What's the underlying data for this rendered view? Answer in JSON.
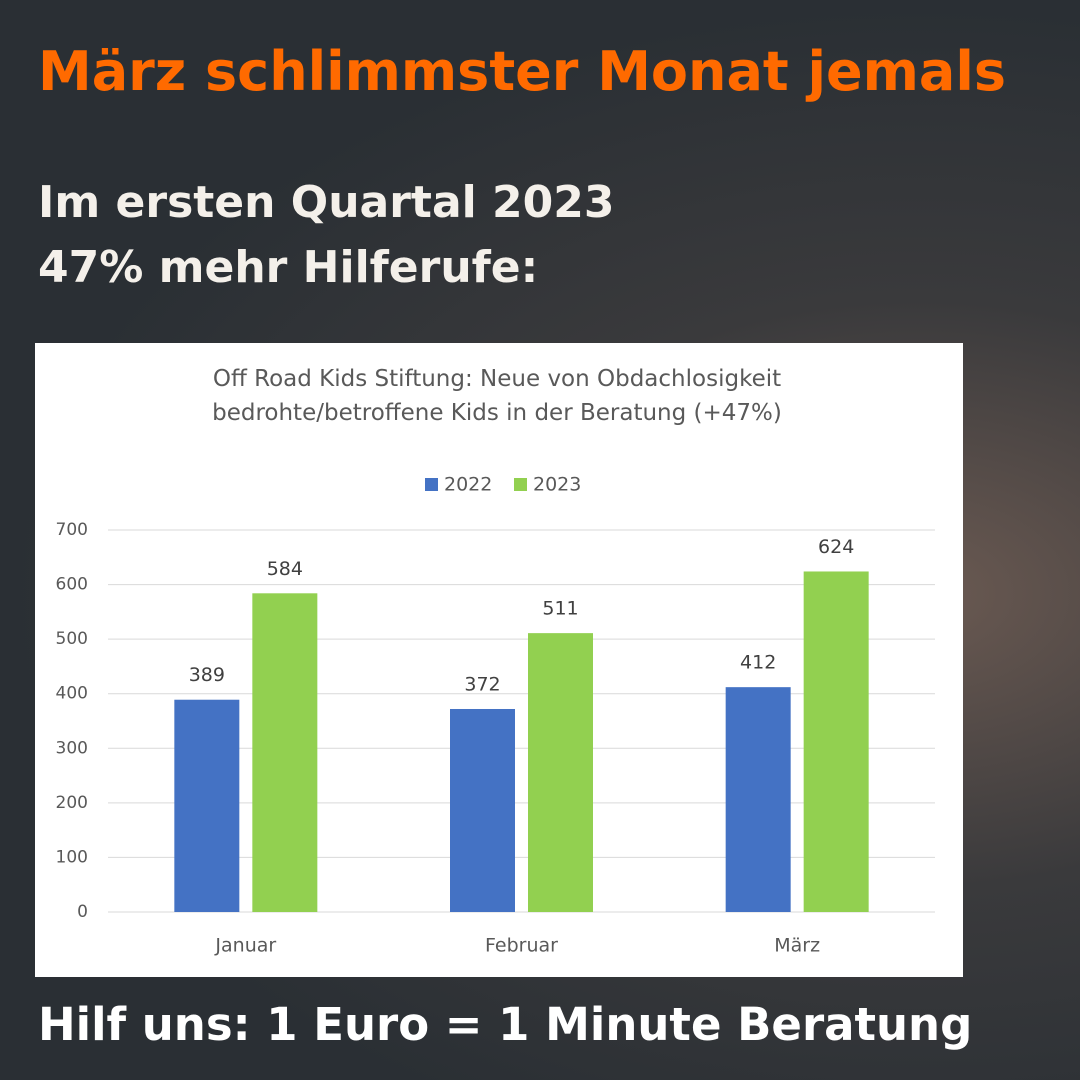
{
  "headline": "März schlimmster Monat jemals",
  "subheadline": [
    "Im ersten Quartal 2023",
    "47% mehr Hilferufe:"
  ],
  "footer": "Hilf uns:  1 Euro = 1 Minute Beratung",
  "chart_data": {
    "type": "bar",
    "title": "Off Road Kids Stiftung: Neue von Obdachlosigkeit bedrohte/betroffene Kids in der Beratung (+47%)",
    "categories": [
      "Januar",
      "Februar",
      "März"
    ],
    "series": [
      {
        "name": "2022",
        "color": "#4472c4",
        "values": [
          389,
          372,
          412
        ]
      },
      {
        "name": "2023",
        "color": "#92d050",
        "values": [
          584,
          511,
          624
        ]
      }
    ],
    "ylim": [
      0,
      700
    ],
    "yticks": [
      0,
      100,
      200,
      300,
      400,
      500,
      600,
      700
    ],
    "grid": true,
    "legend": "top"
  }
}
